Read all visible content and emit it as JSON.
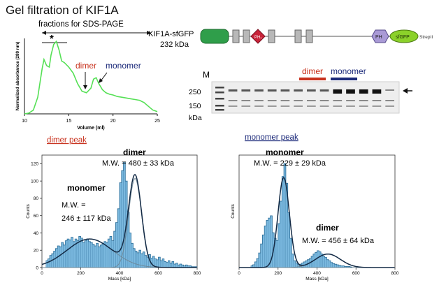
{
  "figure_title": "Gel filtration of KIF1A",
  "construct": {
    "name": "KIF1A-sfGFP",
    "mass": "232 kDa",
    "pha_label": "PH₁",
    "ph_label": "PH",
    "sfgfp_label": "sfGFP",
    "strep_label": "StrepII"
  },
  "gel": {
    "marker_lane": "M",
    "mw_250": "250",
    "mw_150": "150",
    "kda": "kDa",
    "dimer_label": "dimer",
    "monomer_label": "monomer",
    "lane_count": 14,
    "colors": {
      "dimer": "#c8321e",
      "monomer": "#1c2a7a"
    }
  },
  "annotations": {
    "fractions_label": "fractions for SDS-PAGE",
    "star": "*",
    "dimer": "dimer",
    "monomer": "monomer",
    "dimer_peak_link": "dimer peak",
    "monomer_peak_link": "monomer peak",
    "h1_dimer": "dimer",
    "h1_dimer_mw": "M.W. = 480 ± 33 kDa",
    "h1_monomer": "monomer",
    "h1_monomer_mw1": "M.W. =",
    "h1_monomer_mw2": "246 ± 117 kDa",
    "h2_monomer": "monomer",
    "h2_monomer_mw": "M.W. = 229 ± 29 kDa",
    "h2_dimer": "dimer",
    "h2_dimer_mw": "M.W. = 456 ± 64 kDa"
  },
  "chart_data": [
    {
      "type": "line",
      "title": "Gel filtration of KIF1A",
      "xlabel": "Volume (ml)",
      "ylabel": "Normalized absorbance (280 nm)",
      "xlim": [
        10,
        25
      ],
      "xticks": [
        10,
        15,
        20,
        25
      ],
      "color": "#55e055",
      "x": [
        10.0,
        10.5,
        11.0,
        11.5,
        11.8,
        12.0,
        12.2,
        12.5,
        12.8,
        13.0,
        13.3,
        13.6,
        13.9,
        14.2,
        14.5,
        15.0,
        15.5,
        16.0,
        16.5,
        17.0,
        17.5,
        17.8,
        18.1,
        18.4,
        18.8,
        19.2,
        19.6,
        20.0,
        20.5,
        21.0,
        21.5,
        22.0,
        22.5,
        23.0,
        23.5,
        24.0,
        24.5,
        25.0
      ],
      "y": [
        0.0,
        0.01,
        0.05,
        0.22,
        0.45,
        0.6,
        0.72,
        0.64,
        0.62,
        0.78,
        0.92,
        0.96,
        0.85,
        0.7,
        0.68,
        0.62,
        0.54,
        0.4,
        0.3,
        0.28,
        0.34,
        0.46,
        0.48,
        0.4,
        0.32,
        0.28,
        0.26,
        0.25,
        0.23,
        0.22,
        0.21,
        0.2,
        0.19,
        0.18,
        0.15,
        0.1,
        0.05,
        0.03
      ]
    },
    {
      "type": "bar",
      "title": "dimer peak",
      "xlabel": "Mass [kDa]",
      "ylabel": "Counts",
      "xlim": [
        0,
        800
      ],
      "ylim": [
        0,
        130
      ],
      "xticks": [
        0,
        200,
        400,
        600,
        800
      ],
      "yticks": [
        0,
        20,
        40,
        60,
        80,
        100,
        120
      ],
      "bin_start": 20,
      "bin_width": 10,
      "values": [
        8,
        10,
        14,
        16,
        19,
        22,
        25,
        24,
        29,
        26,
        31,
        33,
        32,
        35,
        30,
        33,
        31,
        36,
        34,
        29,
        31,
        33,
        30,
        29,
        27,
        25,
        28,
        24,
        26,
        28,
        30,
        29,
        33,
        36,
        31,
        42,
        52,
        68,
        98,
        112,
        122,
        100,
        64,
        40,
        28,
        22,
        19,
        17,
        20,
        16,
        18,
        14,
        12,
        15,
        11,
        13,
        10,
        9,
        12,
        8,
        10,
        7,
        6,
        8,
        5,
        7,
        4,
        5,
        3,
        4,
        3,
        2,
        3,
        2,
        2,
        1,
        1,
        1
      ],
      "fits": [
        {
          "name": "monomer",
          "mean": 246,
          "sigma": 117,
          "amp": 33
        },
        {
          "name": "dimer",
          "mean": 480,
          "sigma": 33,
          "amp": 103
        }
      ]
    },
    {
      "type": "bar",
      "title": "monomer peak",
      "xlabel": "Mass [kDa]",
      "ylabel": "Counts",
      "xlim": [
        0,
        800
      ],
      "ylim": [
        0,
        200
      ],
      "xticks": [
        0,
        200,
        400,
        600,
        800
      ],
      "yticks": [],
      "bin_start": 60,
      "bin_width": 10,
      "values": [
        3,
        5,
        10,
        16,
        26,
        42,
        58,
        74,
        84,
        88,
        92,
        62,
        52,
        48,
        78,
        118,
        162,
        185,
        150,
        98,
        52,
        24,
        12,
        8,
        6,
        6,
        8,
        10,
        12,
        14,
        16,
        20,
        24,
        27,
        30,
        28,
        24,
        20,
        18,
        14,
        12,
        9,
        7,
        6,
        5,
        4,
        3,
        3,
        2,
        2,
        2,
        1
      ],
      "fits": [
        {
          "name": "monomer",
          "mean": 229,
          "sigma": 29,
          "amp": 160
        },
        {
          "name": "dimer",
          "mean": 456,
          "sigma": 64,
          "amp": 24
        }
      ]
    }
  ]
}
